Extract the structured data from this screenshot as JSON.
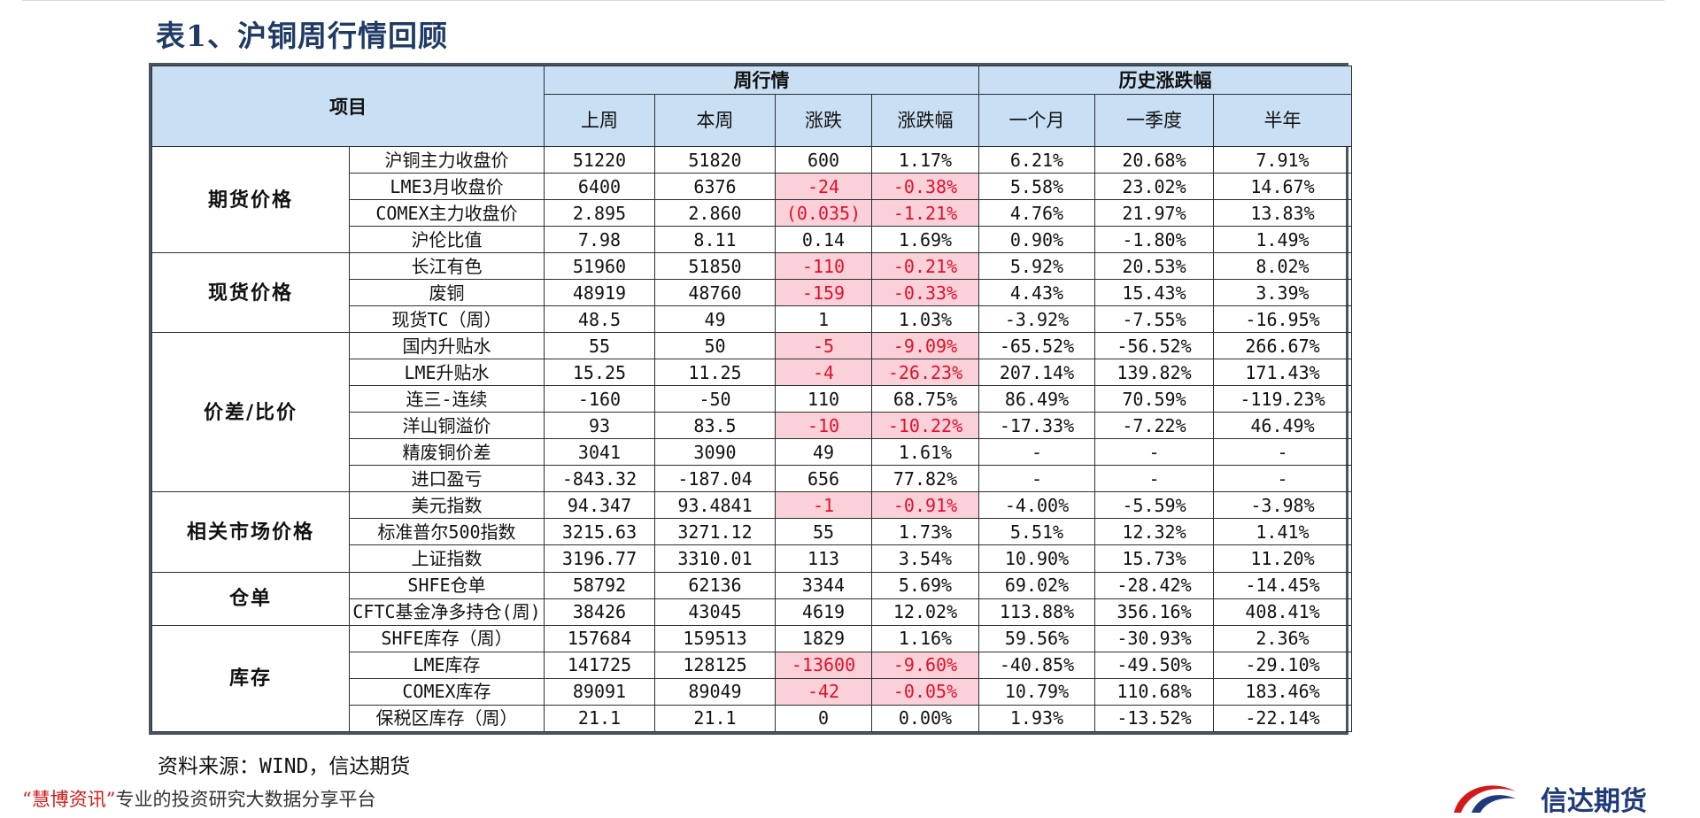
{
  "title": "表1、沪铜周行情回顾",
  "table": {
    "header": {
      "item": "项目",
      "group_week": "周行情",
      "group_hist": "历史涨跌幅",
      "cols": [
        "上周",
        "本周",
        "涨跌",
        "涨跌幅",
        "一个月",
        "一季度",
        "半年"
      ]
    },
    "groups": [
      {
        "category": "期货价格",
        "rows": [
          {
            "name": "沪铜主力收盘价",
            "v": [
              "51220",
              "51820",
              "600",
              "1.17%",
              "6.21%",
              "20.68%",
              "7.91%"
            ],
            "neg": false
          },
          {
            "name": "LME3月收盘价",
            "v": [
              "6400",
              "6376",
              "-24",
              "-0.38%",
              "5.58%",
              "23.02%",
              "14.67%"
            ],
            "neg": true
          },
          {
            "name": "COMEX主力收盘价",
            "v": [
              "2.895",
              "2.860",
              "(0.035)",
              "-1.21%",
              "4.76%",
              "21.97%",
              "13.83%"
            ],
            "neg": true
          },
          {
            "name": "沪伦比值",
            "v": [
              "7.98",
              "8.11",
              "0.14",
              "1.69%",
              "0.90%",
              "-1.80%",
              "1.49%"
            ],
            "neg": false
          }
        ]
      },
      {
        "category": "现货价格",
        "rows": [
          {
            "name": "长江有色",
            "v": [
              "51960",
              "51850",
              "-110",
              "-0.21%",
              "5.92%",
              "20.53%",
              "8.02%"
            ],
            "neg": true
          },
          {
            "name": "废铜",
            "v": [
              "48919",
              "48760",
              "-159",
              "-0.33%",
              "4.43%",
              "15.43%",
              "3.39%"
            ],
            "neg": true
          },
          {
            "name": "现货TC（周）",
            "v": [
              "48.5",
              "49",
              "1",
              "1.03%",
              "-3.92%",
              "-7.55%",
              "-16.95%"
            ],
            "neg": false
          }
        ]
      },
      {
        "category": "价差/比价",
        "rows": [
          {
            "name": "国内升贴水",
            "v": [
              "55",
              "50",
              "-5",
              "-9.09%",
              "-65.52%",
              "-56.52%",
              "266.67%"
            ],
            "neg": true
          },
          {
            "name": "LME升贴水",
            "v": [
              "15.25",
              "11.25",
              "-4",
              "-26.23%",
              "207.14%",
              "139.82%",
              "171.43%"
            ],
            "neg": true
          },
          {
            "name": "连三-连续",
            "v": [
              "-160",
              "-50",
              "110",
              "68.75%",
              "86.49%",
              "70.59%",
              "-119.23%"
            ],
            "neg": false
          },
          {
            "name": "洋山铜溢价",
            "v": [
              "93",
              "83.5",
              "-10",
              "-10.22%",
              "-17.33%",
              "-7.22%",
              "46.49%"
            ],
            "neg": true
          },
          {
            "name": "精废铜价差",
            "v": [
              "3041",
              "3090",
              "49",
              "1.61%",
              "-",
              "-",
              "-"
            ],
            "neg": false
          },
          {
            "name": "进口盈亏",
            "v": [
              "-843.32",
              "-187.04",
              "656",
              "77.82%",
              "-",
              "-",
              "-"
            ],
            "neg": false
          }
        ]
      },
      {
        "category": "相关市场价格",
        "rows": [
          {
            "name": "美元指数",
            "v": [
              "94.347",
              "93.4841",
              "-1",
              "-0.91%",
              "-4.00%",
              "-5.59%",
              "-3.98%"
            ],
            "neg": true
          },
          {
            "name": "标准普尔500指数",
            "v": [
              "3215.63",
              "3271.12",
              "55",
              "1.73%",
              "5.51%",
              "12.32%",
              "1.41%"
            ],
            "neg": false
          },
          {
            "name": "上证指数",
            "v": [
              "3196.77",
              "3310.01",
              "113",
              "3.54%",
              "10.90%",
              "15.73%",
              "11.20%"
            ],
            "neg": false
          }
        ]
      },
      {
        "category": "仓单",
        "rows": [
          {
            "name": "SHFE仓单",
            "v": [
              "58792",
              "62136",
              "3344",
              "5.69%",
              "69.02%",
              "-28.42%",
              "-14.45%"
            ],
            "neg": false
          },
          {
            "name": "CFTC基金净多持仓(周)",
            "v": [
              "38426",
              "43045",
              "4619",
              "12.02%",
              "113.88%",
              "356.16%",
              "408.41%"
            ],
            "neg": false
          }
        ]
      },
      {
        "category": "库存",
        "rows": [
          {
            "name": "SHFE库存（周）",
            "v": [
              "157684",
              "159513",
              "1829",
              "1.16%",
              "59.56%",
              "-30.93%",
              "2.36%"
            ],
            "neg": false
          },
          {
            "name": "LME库存",
            "v": [
              "141725",
              "128125",
              "-13600",
              "-9.60%",
              "-40.85%",
              "-49.50%",
              "-29.10%"
            ],
            "neg": true
          },
          {
            "name": "COMEX库存",
            "v": [
              "89091",
              "89049",
              "-42",
              "-0.05%",
              "10.79%",
              "110.68%",
              "183.46%"
            ],
            "neg": true
          },
          {
            "name": "保税区库存（周）",
            "v": [
              "21.1",
              "21.1",
              "0",
              "0.00%",
              "1.93%",
              "-13.52%",
              "-22.14%"
            ],
            "neg": false
          }
        ]
      }
    ]
  },
  "source": "资料来源：WIND，信达期货",
  "footer": {
    "brand": "“慧博资讯”",
    "text": "专业的投资研究大数据分享平台"
  },
  "logo_text": "信达期货",
  "colors": {
    "header_bg": "#c9dff3",
    "neg_bg": "#fbd1d9",
    "neg_text": "#e0102a",
    "title": "#1f3a64"
  }
}
